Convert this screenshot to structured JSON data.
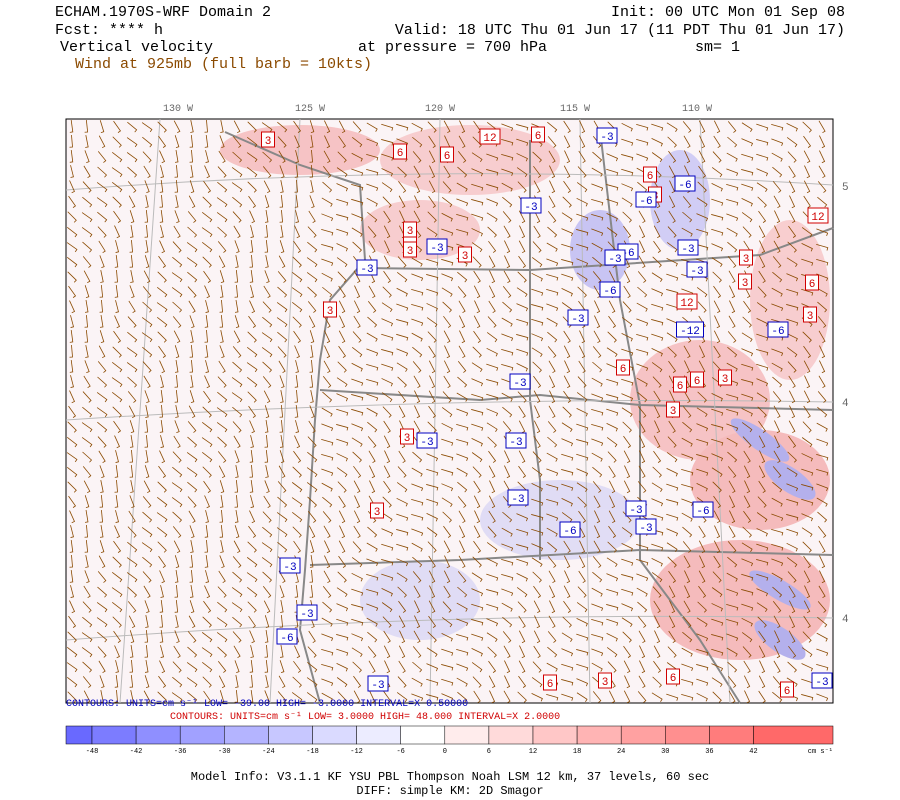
{
  "header": {
    "title": "ECHAM.1970S-WRF Domain 2",
    "init": "Init: 00 UTC Mon 01 Sep 08",
    "forecast": "Fcst: **** h",
    "valid": "Valid: 18 UTC Thu 01 Jun 17 (11 PDT Thu 01 Jun 17)",
    "field": "Vertical velocity",
    "level": "at pressure =  700 hPa",
    "smoothing": "sm= 1",
    "wind": "Wind at 925mb (full barb = 10kts)"
  },
  "map": {
    "longitudes": [
      "130 W",
      "125 W",
      "120 W",
      "115 W",
      "110 W"
    ],
    "latitudes": [
      "5",
      "4",
      "4"
    ],
    "contour_labels": [
      "3",
      "6",
      "12",
      "6",
      "3",
      "-3",
      "6",
      "6",
      "3",
      "-3",
      "3",
      "-3",
      "-3",
      "3",
      "-3",
      "-6",
      "6",
      "-6",
      "-6",
      "12",
      "-3",
      "3",
      "-3",
      "-6",
      "3",
      "6",
      "-12",
      "-3",
      "6",
      "-6",
      "3",
      "6",
      "6",
      "3",
      "-3",
      "6",
      "3",
      "-3",
      "3",
      "-3",
      "-3",
      "3",
      "-3",
      "-6",
      "-3",
      "-3",
      "-3",
      "-6",
      "-3",
      "6",
      "3",
      "6",
      "-3",
      "6",
      "12",
      "3",
      "-6"
    ]
  },
  "contours": {
    "negative": "CONTOURS:  UNITS=cm s⁻¹  LOW=  -39.00      HIGH=  -3.0000      INTERVAL=X 0.50000",
    "positive": "CONTOURS:  UNITS=cm s⁻¹  LOW=  3.0000      HIGH=  48.000      INTERVAL=X  2.0000"
  },
  "colorbar": {
    "ticks": [
      "-48",
      "-42",
      "-36",
      "-30",
      "-24",
      "-18",
      "-12",
      "-6",
      "0",
      "6",
      "12",
      "18",
      "24",
      "30",
      "36",
      "42"
    ],
    "units": "cm s⁻¹"
  },
  "footer": {
    "model": "Model Info: V3.1.1    KF     YSU PBL  Thompson    Noah LSM  12 km,    37 levels,    60 sec",
    "diff": "DIFF: simple KM: 2D Smagor"
  }
}
